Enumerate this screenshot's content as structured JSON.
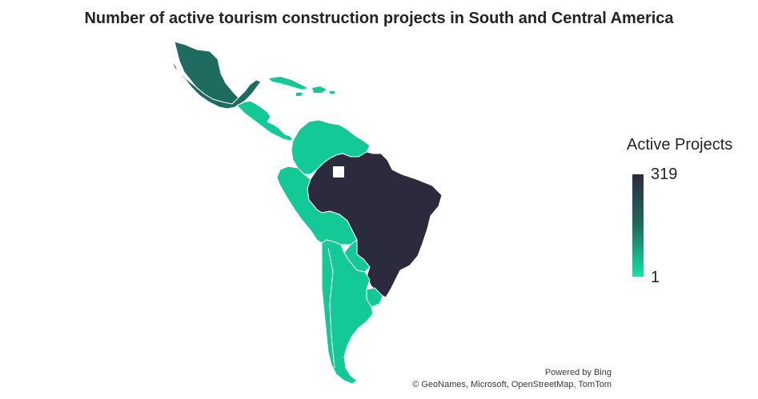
{
  "title": "Number of active tourism construction projects in South and Central America",
  "legend": {
    "title": "Active Projects",
    "max_label": "319",
    "min_label": "1",
    "max_value": 319,
    "min_value": 1,
    "color_high": "#2b2b3d",
    "color_mid": "#1e6b5f",
    "color_low": "#14e3a3"
  },
  "colors": {
    "brazil": "#2b2b3d",
    "mexico": "#1e6b5f",
    "other": "#12c997",
    "border": "#ffffff"
  },
  "credits": {
    "powered": "Powered by Bing",
    "sources": "© GeoNames, Microsoft, OpenStreetMap, TomTom"
  }
}
